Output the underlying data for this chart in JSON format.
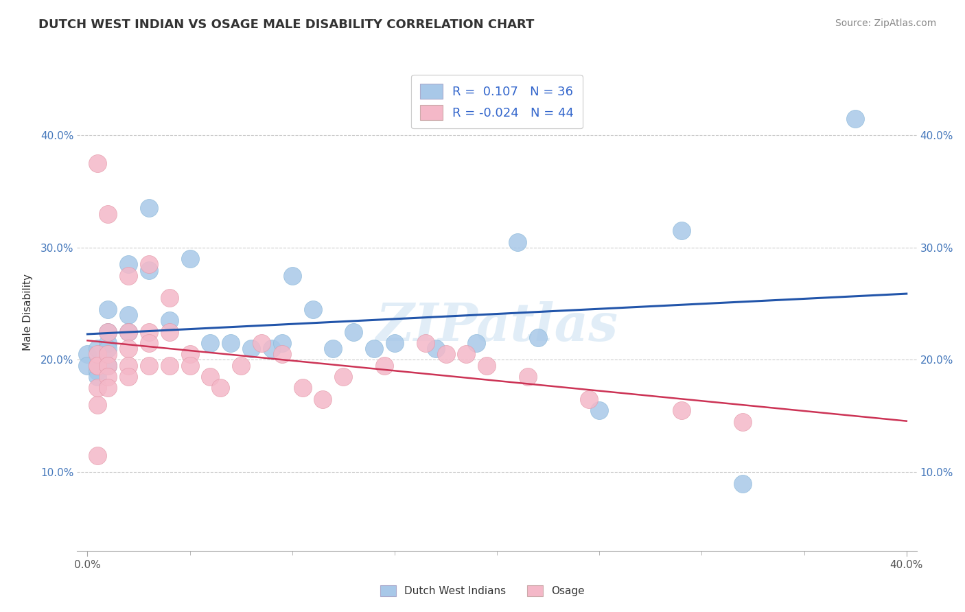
{
  "title": "DUTCH WEST INDIAN VS OSAGE MALE DISABILITY CORRELATION CHART",
  "source": "Source: ZipAtlas.com",
  "ylabel": "Male Disability",
  "xlabel": "",
  "xlim": [
    -0.005,
    0.405
  ],
  "ylim": [
    0.03,
    0.455
  ],
  "ytick_vals": [
    0.1,
    0.2,
    0.3,
    0.4
  ],
  "ytick_labels": [
    "10.0%",
    "20.0%",
    "30.0%",
    "40.0%"
  ],
  "xtick_minor_vals": [
    0.0,
    0.05,
    0.1,
    0.15,
    0.2,
    0.25,
    0.3,
    0.35,
    0.4
  ],
  "blue_r": 0.107,
  "blue_n": 36,
  "pink_r": -0.024,
  "pink_n": 44,
  "blue_color": "#a8c8e8",
  "pink_color": "#f4b8c8",
  "blue_line_color": "#2255aa",
  "pink_line_color": "#cc3355",
  "watermark": "ZIPatlas",
  "blue_points": [
    [
      0.0,
      0.205
    ],
    [
      0.0,
      0.195
    ],
    [
      0.005,
      0.21
    ],
    [
      0.005,
      0.19
    ],
    [
      0.005,
      0.185
    ],
    [
      0.01,
      0.245
    ],
    [
      0.01,
      0.225
    ],
    [
      0.01,
      0.215
    ],
    [
      0.01,
      0.21
    ],
    [
      0.01,
      0.195
    ],
    [
      0.02,
      0.285
    ],
    [
      0.02,
      0.24
    ],
    [
      0.02,
      0.225
    ],
    [
      0.03,
      0.335
    ],
    [
      0.03,
      0.28
    ],
    [
      0.04,
      0.235
    ],
    [
      0.05,
      0.29
    ],
    [
      0.06,
      0.215
    ],
    [
      0.07,
      0.215
    ],
    [
      0.08,
      0.21
    ],
    [
      0.09,
      0.21
    ],
    [
      0.095,
      0.215
    ],
    [
      0.1,
      0.275
    ],
    [
      0.11,
      0.245
    ],
    [
      0.12,
      0.21
    ],
    [
      0.13,
      0.225
    ],
    [
      0.14,
      0.21
    ],
    [
      0.15,
      0.215
    ],
    [
      0.17,
      0.21
    ],
    [
      0.19,
      0.215
    ],
    [
      0.21,
      0.305
    ],
    [
      0.22,
      0.22
    ],
    [
      0.25,
      0.155
    ],
    [
      0.29,
      0.315
    ],
    [
      0.32,
      0.09
    ],
    [
      0.375,
      0.415
    ]
  ],
  "pink_points": [
    [
      0.005,
      0.375
    ],
    [
      0.005,
      0.115
    ],
    [
      0.005,
      0.16
    ],
    [
      0.005,
      0.175
    ],
    [
      0.005,
      0.195
    ],
    [
      0.005,
      0.205
    ],
    [
      0.005,
      0.195
    ],
    [
      0.01,
      0.33
    ],
    [
      0.01,
      0.225
    ],
    [
      0.01,
      0.205
    ],
    [
      0.01,
      0.195
    ],
    [
      0.01,
      0.185
    ],
    [
      0.01,
      0.175
    ],
    [
      0.02,
      0.275
    ],
    [
      0.02,
      0.225
    ],
    [
      0.02,
      0.21
    ],
    [
      0.02,
      0.195
    ],
    [
      0.02,
      0.185
    ],
    [
      0.03,
      0.285
    ],
    [
      0.03,
      0.225
    ],
    [
      0.03,
      0.215
    ],
    [
      0.03,
      0.195
    ],
    [
      0.04,
      0.255
    ],
    [
      0.04,
      0.225
    ],
    [
      0.04,
      0.195
    ],
    [
      0.05,
      0.205
    ],
    [
      0.05,
      0.195
    ],
    [
      0.06,
      0.185
    ],
    [
      0.065,
      0.175
    ],
    [
      0.075,
      0.195
    ],
    [
      0.085,
      0.215
    ],
    [
      0.095,
      0.205
    ],
    [
      0.105,
      0.175
    ],
    [
      0.115,
      0.165
    ],
    [
      0.125,
      0.185
    ],
    [
      0.145,
      0.195
    ],
    [
      0.165,
      0.215
    ],
    [
      0.175,
      0.205
    ],
    [
      0.185,
      0.205
    ],
    [
      0.195,
      0.195
    ],
    [
      0.215,
      0.185
    ],
    [
      0.245,
      0.165
    ],
    [
      0.29,
      0.155
    ],
    [
      0.32,
      0.145
    ]
  ]
}
